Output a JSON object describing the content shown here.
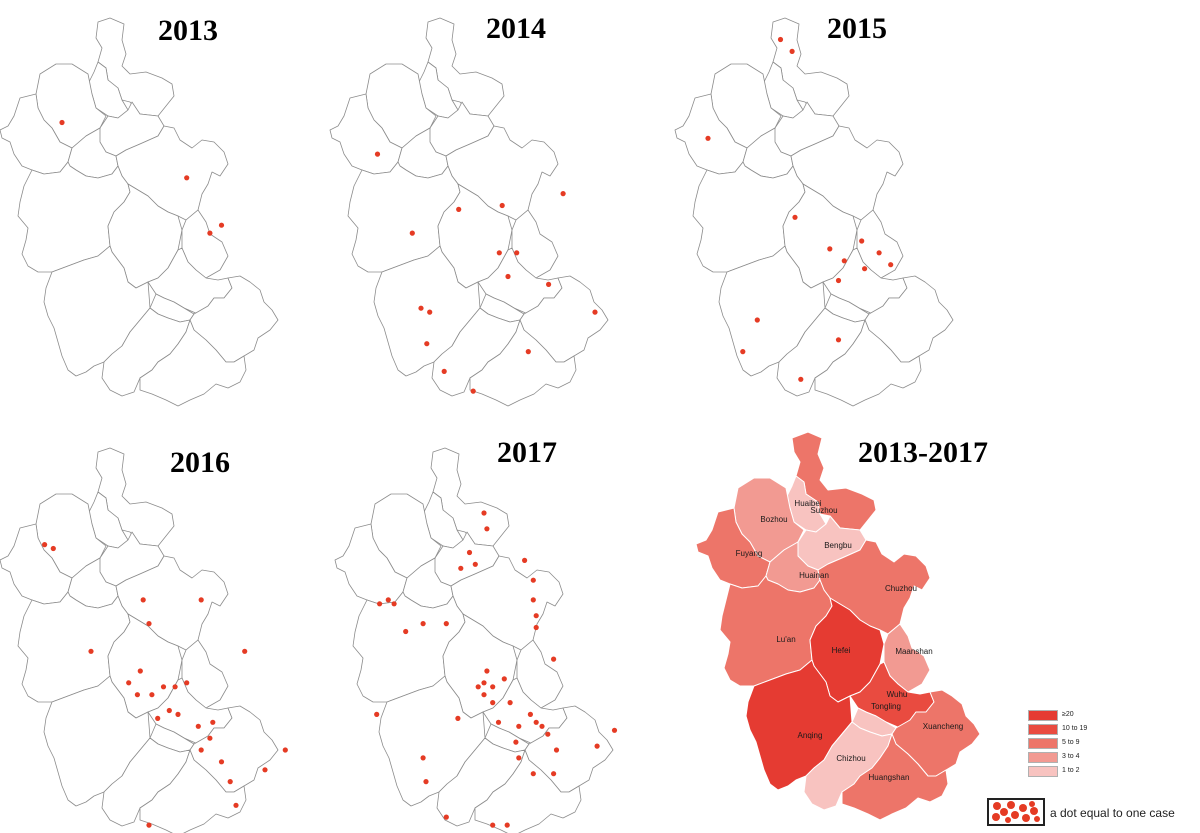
{
  "panels": [
    {
      "id": "p2013",
      "title": "2013",
      "cases": [
        [
          0.2,
          0.3
        ],
        [
          0.63,
          0.44
        ],
        [
          0.71,
          0.58
        ],
        [
          0.75,
          0.56
        ]
      ]
    },
    {
      "id": "p2014",
      "title": "2014",
      "cases": [
        [
          0.15,
          0.38
        ],
        [
          0.27,
          0.58
        ],
        [
          0.43,
          0.52
        ],
        [
          0.58,
          0.51
        ],
        [
          0.57,
          0.63
        ],
        [
          0.63,
          0.63
        ],
        [
          0.6,
          0.69
        ],
        [
          0.79,
          0.48
        ],
        [
          0.74,
          0.71
        ],
        [
          0.9,
          0.78
        ],
        [
          0.67,
          0.88
        ],
        [
          0.3,
          0.77
        ],
        [
          0.33,
          0.78
        ],
        [
          0.32,
          0.86
        ],
        [
          0.38,
          0.93
        ],
        [
          0.48,
          0.98
        ]
      ]
    },
    {
      "id": "p2015",
      "title": "2015",
      "cases": [
        [
          0.35,
          0.09
        ],
        [
          0.39,
          0.12
        ],
        [
          0.1,
          0.34
        ],
        [
          0.4,
          0.54
        ],
        [
          0.52,
          0.62
        ],
        [
          0.63,
          0.6
        ],
        [
          0.69,
          0.63
        ],
        [
          0.57,
          0.65
        ],
        [
          0.64,
          0.67
        ],
        [
          0.73,
          0.66
        ],
        [
          0.55,
          0.7
        ],
        [
          0.27,
          0.8
        ],
        [
          0.22,
          0.88
        ],
        [
          0.55,
          0.85
        ],
        [
          0.42,
          0.95
        ]
      ]
    },
    {
      "id": "p2016",
      "title": "2016",
      "cases": [
        [
          0.14,
          0.28
        ],
        [
          0.17,
          0.29
        ],
        [
          0.48,
          0.42
        ],
        [
          0.68,
          0.42
        ],
        [
          0.3,
          0.55
        ],
        [
          0.5,
          0.48
        ],
        [
          0.83,
          0.55
        ],
        [
          0.47,
          0.6
        ],
        [
          0.43,
          0.63
        ],
        [
          0.46,
          0.66
        ],
        [
          0.51,
          0.66
        ],
        [
          0.55,
          0.64
        ],
        [
          0.59,
          0.64
        ],
        [
          0.63,
          0.63
        ],
        [
          0.57,
          0.7
        ],
        [
          0.53,
          0.72
        ],
        [
          0.6,
          0.71
        ],
        [
          0.67,
          0.74
        ],
        [
          0.71,
          0.77
        ],
        [
          0.72,
          0.73
        ],
        [
          0.68,
          0.8
        ],
        [
          0.75,
          0.83
        ],
        [
          0.9,
          0.85
        ],
        [
          0.97,
          0.8
        ],
        [
          0.78,
          0.88
        ],
        [
          0.8,
          0.94
        ],
        [
          0.5,
          0.99
        ]
      ]
    },
    {
      "id": "p2017",
      "title": "2017",
      "cases": [
        [
          0.5,
          0.2
        ],
        [
          0.51,
          0.24
        ],
        [
          0.45,
          0.3
        ],
        [
          0.47,
          0.33
        ],
        [
          0.42,
          0.34
        ],
        [
          0.64,
          0.32
        ],
        [
          0.67,
          0.37
        ],
        [
          0.67,
          0.42
        ],
        [
          0.68,
          0.46
        ],
        [
          0.14,
          0.43
        ],
        [
          0.17,
          0.42
        ],
        [
          0.19,
          0.43
        ],
        [
          0.23,
          0.5
        ],
        [
          0.29,
          0.48
        ],
        [
          0.37,
          0.48
        ],
        [
          0.68,
          0.49
        ],
        [
          0.74,
          0.57
        ],
        [
          0.51,
          0.6
        ],
        [
          0.5,
          0.63
        ],
        [
          0.48,
          0.64
        ],
        [
          0.5,
          0.66
        ],
        [
          0.53,
          0.64
        ],
        [
          0.57,
          0.62
        ],
        [
          0.53,
          0.68
        ],
        [
          0.59,
          0.68
        ],
        [
          0.13,
          0.71
        ],
        [
          0.41,
          0.72
        ],
        [
          0.55,
          0.73
        ],
        [
          0.62,
          0.74
        ],
        [
          0.66,
          0.71
        ],
        [
          0.68,
          0.73
        ],
        [
          0.7,
          0.74
        ],
        [
          0.72,
          0.76
        ],
        [
          0.75,
          0.8
        ],
        [
          0.74,
          0.86
        ],
        [
          0.67,
          0.86
        ],
        [
          0.61,
          0.78
        ],
        [
          0.62,
          0.82
        ],
        [
          0.89,
          0.79
        ],
        [
          0.95,
          0.75
        ],
        [
          0.29,
          0.82
        ],
        [
          0.3,
          0.88
        ],
        [
          0.37,
          0.97
        ],
        [
          0.53,
          0.99
        ],
        [
          0.58,
          0.99
        ]
      ]
    }
  ],
  "summary": {
    "title": "2013-2017",
    "regions": [
      {
        "id": "suzhou",
        "name": "Suzhou",
        "cls": "5_9"
      },
      {
        "id": "huaibei",
        "name": "Huaibei",
        "cls": "1_2"
      },
      {
        "id": "bozhou",
        "name": "Bozhou",
        "cls": "3_4"
      },
      {
        "id": "bengbu",
        "name": "Bengbu",
        "cls": "1_2"
      },
      {
        "id": "fuyang",
        "name": "Fuyang",
        "cls": "5_9"
      },
      {
        "id": "huainan",
        "name": "Huainan",
        "cls": "3_4"
      },
      {
        "id": "chuzhou",
        "name": "Chuzhou",
        "cls": "5_9"
      },
      {
        "id": "luan",
        "name": "Lu'an",
        "cls": "5_9"
      },
      {
        "id": "hefei",
        "name": "Hefei",
        "cls": "ge20"
      },
      {
        "id": "maanshan",
        "name": "Maanshan",
        "cls": "3_4"
      },
      {
        "id": "wuhu",
        "name": "Wuhu",
        "cls": "10_19"
      },
      {
        "id": "tongling",
        "name": "Tongling",
        "cls": "1_2"
      },
      {
        "id": "xuancheng",
        "name": "Xuancheng",
        "cls": "5_9"
      },
      {
        "id": "anqing",
        "name": "Anqing",
        "cls": "ge20"
      },
      {
        "id": "chizhou",
        "name": "Chizhou",
        "cls": "1_2"
      },
      {
        "id": "huangshan",
        "name": "Huangshan",
        "cls": "5_9"
      }
    ]
  },
  "legend": {
    "items": [
      {
        "cls": "ge20",
        "label": "≥20",
        "color": "#e53b32"
      },
      {
        "cls": "10_19",
        "label": "10  to  19",
        "color": "#e94b40"
      },
      {
        "cls": "5_9",
        "label": "5  to    9",
        "color": "#ed7569"
      },
      {
        "cls": "3_4",
        "label": "3  to    4",
        "color": "#f29a92"
      },
      {
        "cls": "1_2",
        "label": "1  to    2",
        "color": "#f8c3c0"
      }
    ],
    "dot_note": "a dot equal to one case"
  },
  "colors": {
    "dot": "#e53b24",
    "outline": "#8c8c8c",
    "summary_border": "#ffffff"
  }
}
